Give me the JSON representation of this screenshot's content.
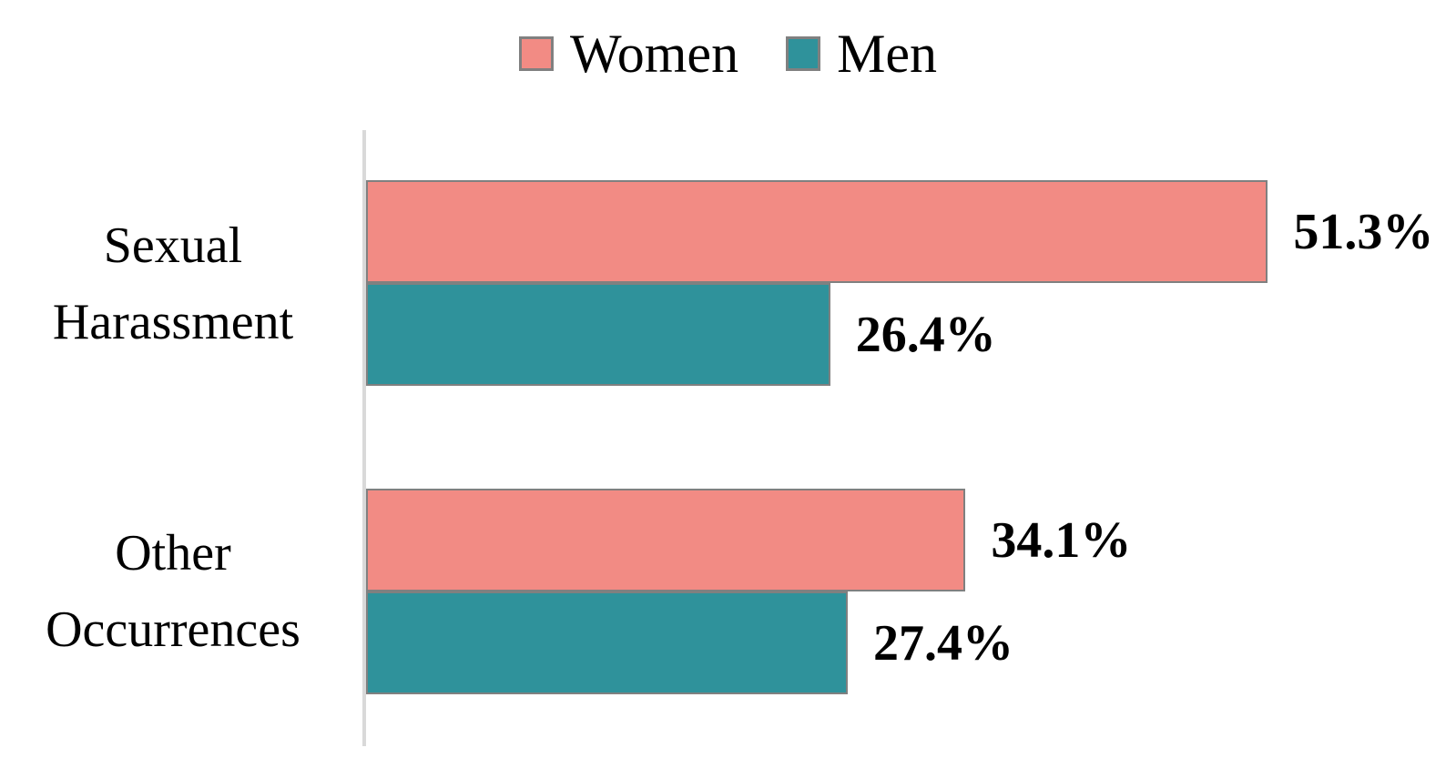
{
  "chart_data": {
    "type": "bar",
    "orientation": "horizontal",
    "title": "",
    "xlabel": "",
    "ylabel": "",
    "categories": [
      "Sexual Harassment",
      "Other Occurrences"
    ],
    "series": [
      {
        "name": "Women",
        "color": "#F28B84",
        "values": [
          51.3,
          34.1
        ],
        "labels": [
          "51.3%",
          "34.1%"
        ]
      },
      {
        "name": "Men",
        "color": "#2F929B",
        "values": [
          26.4,
          27.4
        ],
        "labels": [
          "26.4%",
          "27.4%"
        ]
      }
    ],
    "xlim": [
      0,
      62
    ],
    "grid": false,
    "legend_position": "top",
    "bar_border_color": "#808080",
    "axis_line_color": "#D9D9D9",
    "text_color": "#000000"
  }
}
